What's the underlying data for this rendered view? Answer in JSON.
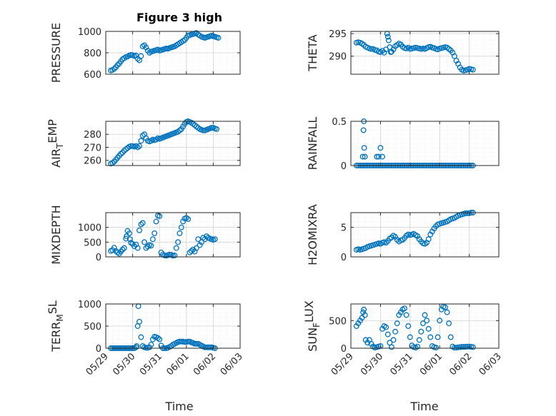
{
  "title": "Figure 3 high",
  "colors": {
    "marker": "#0072BD",
    "axis": "#262626",
    "grid": "#d0d0d0",
    "minor_grid": "#e6e6e6"
  },
  "xlabel": "Time",
  "chart_data": [
    {
      "type": "scatter",
      "ylabel": "PRESSURE",
      "title": "Figure 3 high",
      "xlim": [
        0,
        4
      ],
      "ylim": [
        600,
        1000
      ],
      "yticks": [
        600,
        800,
        1000
      ],
      "ytick_labels": [
        "600",
        "800",
        "1000"
      ],
      "x": [
        0.15,
        0.2,
        0.25,
        0.3,
        0.35,
        0.4,
        0.45,
        0.5,
        0.55,
        0.6,
        0.65,
        0.7,
        0.75,
        0.8,
        0.85,
        0.9,
        0.95,
        1.0,
        1.05,
        1.1,
        1.15,
        1.2,
        1.25,
        1.3,
        1.35,
        1.4,
        1.45,
        1.5,
        1.55,
        1.6,
        1.65,
        1.7,
        1.75,
        1.8,
        1.85,
        1.9,
        1.95,
        2.0,
        2.05,
        2.1,
        2.15,
        2.2,
        2.25,
        2.3,
        2.35,
        2.4,
        2.45,
        2.5,
        2.55,
        2.6,
        2.65,
        2.7,
        2.75,
        2.8,
        2.85,
        2.9,
        2.95,
        3.0,
        3.05,
        3.1,
        3.15,
        3.2,
        3.25,
        3.3,
        3.35
      ],
      "y": [
        635,
        640,
        650,
        665,
        685,
        700,
        720,
        740,
        750,
        760,
        765,
        775,
        780,
        778,
        770,
        775,
        745,
        730,
        770,
        860,
        870,
        850,
        820,
        800,
        810,
        815,
        820,
        825,
        830,
        820,
        825,
        830,
        835,
        840,
        838,
        845,
        850,
        855,
        860,
        870,
        880,
        890,
        900,
        910,
        920,
        940,
        960,
        965,
        970,
        975,
        980,
        985,
        970,
        960,
        950,
        945,
        940,
        945,
        950,
        955,
        960,
        955,
        950,
        945,
        940
      ]
    },
    {
      "type": "scatter",
      "ylabel": "THETA",
      "xlim": [
        0,
        4
      ],
      "ylim": [
        286,
        295.5
      ],
      "yticks": [
        290,
        295
      ],
      "ytick_labels": [
        "290",
        "295"
      ],
      "x": [
        0.15,
        0.2,
        0.25,
        0.3,
        0.35,
        0.4,
        0.45,
        0.5,
        0.55,
        0.6,
        0.65,
        0.7,
        0.75,
        0.8,
        0.85,
        0.9,
        0.95,
        0.98,
        1.0,
        1.02,
        1.05,
        1.08,
        1.1,
        1.15,
        1.2,
        1.25,
        1.3,
        1.35,
        1.4,
        1.45,
        1.5,
        1.55,
        1.6,
        1.65,
        1.7,
        1.75,
        1.8,
        1.85,
        1.9,
        1.95,
        2.0,
        2.05,
        2.1,
        2.15,
        2.2,
        2.25,
        2.3,
        2.35,
        2.4,
        2.45,
        2.5,
        2.55,
        2.6,
        2.65,
        2.7,
        2.75,
        2.8,
        2.85,
        2.9,
        2.95,
        3.0,
        3.05,
        3.1,
        3.15,
        3.2,
        3.25,
        3.3
      ],
      "y": [
        293.0,
        293.1,
        293.0,
        292.8,
        292.5,
        292.1,
        291.9,
        291.7,
        291.6,
        291.6,
        291.4,
        291.3,
        291.0,
        290.9,
        291.2,
        290.8,
        291.5,
        295.0,
        294.3,
        293.5,
        292.0,
        290.9,
        291.0,
        291.5,
        292.2,
        292.5,
        292.8,
        292.6,
        292.1,
        291.8,
        291.7,
        291.9,
        291.6,
        291.7,
        291.8,
        291.9,
        291.8,
        291.7,
        291.6,
        291.7,
        291.6,
        291.8,
        292.0,
        292.1,
        291.9,
        291.8,
        291.6,
        291.5,
        291.7,
        291.8,
        291.9,
        292.0,
        291.9,
        291.6,
        291.3,
        290.8,
        290.0,
        289.0,
        288.3,
        287.5,
        287.0,
        286.8,
        286.9,
        287.0,
        287.2,
        287.1,
        287.0
      ]
    },
    {
      "type": "scatter",
      "ylabel": "AIR_T_EMP",
      "ylabel_parts": [
        "AIR",
        "T",
        "EMP"
      ],
      "xlim": [
        0,
        4
      ],
      "ylim": [
        256,
        290
      ],
      "yticks": [
        260,
        270,
        280
      ],
      "ytick_labels": [
        "260",
        "270",
        "280"
      ],
      "x": [
        0.15,
        0.2,
        0.25,
        0.3,
        0.35,
        0.4,
        0.45,
        0.5,
        0.55,
        0.6,
        0.65,
        0.7,
        0.75,
        0.8,
        0.85,
        0.9,
        0.95,
        1.0,
        1.05,
        1.1,
        1.15,
        1.2,
        1.25,
        1.3,
        1.35,
        1.4,
        1.45,
        1.5,
        1.55,
        1.6,
        1.65,
        1.7,
        1.75,
        1.8,
        1.85,
        1.9,
        1.95,
        2.0,
        2.05,
        2.1,
        2.15,
        2.2,
        2.25,
        2.3,
        2.35,
        2.4,
        2.45,
        2.5,
        2.55,
        2.6,
        2.65,
        2.7,
        2.75,
        2.8,
        2.85,
        2.9,
        2.95,
        3.0,
        3.05,
        3.1,
        3.15,
        3.2,
        3.25,
        3.3
      ],
      "y": [
        257.5,
        258,
        259,
        260.5,
        262,
        263.5,
        265,
        266,
        267.5,
        268.5,
        269.5,
        270.5,
        271,
        271,
        270.5,
        271,
        270,
        271,
        275,
        279,
        280,
        277,
        275,
        274.5,
        275,
        276,
        275.5,
        276,
        277,
        276.5,
        277,
        277.5,
        278,
        278.5,
        279,
        279.5,
        280,
        280.5,
        281,
        281.5,
        282,
        283,
        284,
        286,
        288,
        289.5,
        290,
        289.5,
        289,
        288,
        287,
        286,
        285,
        284,
        283.5,
        283,
        283,
        283.5,
        284,
        284.5,
        285,
        285,
        284.5,
        284
      ]
    },
    {
      "type": "scatter",
      "ylabel": "RAINFALL",
      "xlim": [
        0,
        4
      ],
      "ylim": [
        0,
        0.5
      ],
      "yticks": [
        0,
        0.5
      ],
      "ytick_labels": [
        "0",
        "0.5"
      ],
      "x": [
        0.15,
        0.2,
        0.25,
        0.3,
        0.35,
        0.4,
        0.45,
        0.5,
        0.55,
        0.6,
        0.65,
        0.7,
        0.75,
        0.8,
        0.85,
        0.9,
        0.95,
        1.0,
        1.05,
        1.1,
        1.15,
        1.2,
        1.25,
        1.3,
        1.35,
        1.4,
        1.45,
        1.5,
        1.55,
        1.6,
        1.65,
        1.7,
        1.75,
        1.8,
        1.85,
        1.9,
        1.95,
        2.0,
        2.05,
        2.1,
        2.15,
        2.2,
        2.25,
        2.3,
        2.35,
        2.4,
        2.45,
        2.5,
        2.55,
        2.6,
        2.65,
        2.7,
        2.75,
        2.8,
        2.85,
        2.9,
        2.95,
        3.0,
        3.05,
        3.1,
        3.15,
        3.2,
        3.25,
        3.3,
        0.32,
        0.34,
        0.35,
        0.36,
        0.38,
        0.7,
        0.75,
        0.8,
        0.85
      ],
      "y": [
        0,
        0,
        0,
        0,
        0,
        0,
        0,
        0,
        0,
        0,
        0,
        0,
        0,
        0,
        0,
        0,
        0,
        0,
        0,
        0,
        0,
        0,
        0,
        0,
        0,
        0,
        0,
        0,
        0,
        0,
        0,
        0,
        0,
        0,
        0,
        0,
        0,
        0,
        0,
        0,
        0,
        0,
        0,
        0,
        0,
        0,
        0,
        0,
        0,
        0,
        0,
        0,
        0,
        0,
        0,
        0,
        0,
        0,
        0,
        0,
        0,
        0,
        0,
        0,
        0.1,
        0.4,
        0.5,
        0.2,
        0.1,
        0.1,
        0.1,
        0.2,
        0.1
      ]
    },
    {
      "type": "scatter",
      "ylabel": "MIXDEPTH",
      "xlim": [
        0,
        4
      ],
      "ylim": [
        0,
        1500
      ],
      "yticks": [
        0,
        500,
        1000
      ],
      "ytick_labels": [
        "0",
        "500",
        "1000"
      ],
      "x": [
        0.15,
        0.2,
        0.25,
        0.3,
        0.35,
        0.4,
        0.45,
        0.5,
        0.55,
        0.6,
        0.62,
        0.65,
        0.7,
        0.72,
        0.75,
        0.8,
        0.85,
        0.9,
        0.95,
        1.0,
        1.05,
        1.1,
        1.15,
        1.2,
        1.25,
        1.3,
        1.35,
        1.4,
        1.45,
        1.5,
        1.55,
        1.6,
        1.65,
        1.7,
        1.75,
        1.8,
        1.85,
        1.9,
        1.95,
        2.0,
        2.05,
        2.1,
        2.15,
        2.2,
        2.25,
        2.3,
        2.35,
        2.4,
        2.45,
        2.5,
        2.55,
        2.6,
        2.65,
        2.7,
        2.75,
        2.8,
        2.85,
        2.9,
        2.95,
        3.0,
        3.05,
        3.1,
        3.15,
        3.2,
        3.25
      ],
      "y": [
        200,
        230,
        310,
        200,
        150,
        110,
        180,
        250,
        300,
        620,
        700,
        880,
        800,
        600,
        480,
        440,
        360,
        420,
        300,
        900,
        1100,
        1150,
        500,
        300,
        350,
        400,
        380,
        600,
        800,
        1200,
        1400,
        1380,
        150,
        80,
        50,
        40,
        60,
        80,
        70,
        40,
        50,
        300,
        500,
        800,
        1000,
        1200,
        1300,
        1320,
        1280,
        150,
        200,
        250,
        180,
        300,
        600,
        400,
        500,
        650,
        600,
        700,
        650,
        620,
        600,
        580,
        600
      ]
    },
    {
      "type": "scatter",
      "ylabel": "H2OMIXRA",
      "xlim": [
        0,
        4
      ],
      "ylim": [
        0,
        7.5
      ],
      "yticks": [
        0,
        5
      ],
      "ytick_labels": [
        "0",
        "5"
      ],
      "x": [
        0.15,
        0.2,
        0.25,
        0.3,
        0.35,
        0.4,
        0.45,
        0.5,
        0.55,
        0.6,
        0.65,
        0.7,
        0.75,
        0.8,
        0.85,
        0.9,
        0.95,
        1.0,
        1.05,
        1.1,
        1.15,
        1.2,
        1.25,
        1.3,
        1.35,
        1.4,
        1.45,
        1.5,
        1.55,
        1.6,
        1.65,
        1.7,
        1.75,
        1.8,
        1.85,
        1.9,
        1.95,
        2.0,
        2.05,
        2.1,
        2.15,
        2.2,
        2.25,
        2.3,
        2.35,
        2.4,
        2.45,
        2.5,
        2.55,
        2.6,
        2.65,
        2.7,
        2.75,
        2.8,
        2.85,
        2.9,
        2.95,
        3.0,
        3.05,
        3.1,
        3.15,
        3.2,
        3.25,
        3.3
      ],
      "y": [
        1.2,
        1.3,
        1.2,
        1.3,
        1.4,
        1.5,
        1.7,
        1.8,
        1.9,
        2.0,
        2.1,
        2.2,
        2.3,
        2.2,
        2.4,
        2.5,
        2.4,
        2.7,
        3.1,
        3.3,
        3.6,
        3.4,
        2.9,
        2.6,
        2.8,
        2.9,
        3.2,
        3.6,
        3.8,
        3.7,
        3.8,
        3.9,
        3.7,
        3.5,
        3.0,
        2.6,
        2.3,
        2.2,
        2.4,
        3.0,
        3.8,
        4.3,
        4.8,
        5.2,
        5.5,
        5.6,
        5.7,
        5.8,
        5.9,
        6.0,
        6.2,
        6.4,
        6.5,
        6.6,
        6.8,
        7.0,
        7.1,
        7.2,
        7.3,
        7.4,
        7.4,
        7.4,
        7.5,
        7.5
      ]
    },
    {
      "type": "scatter",
      "ylabel": "TERR_M_SL",
      "ylabel_parts": [
        "TERR",
        "M",
        "SL"
      ],
      "xlim": [
        0,
        4
      ],
      "ylim": [
        0,
        1000
      ],
      "yticks": [
        0,
        500,
        1000
      ],
      "ytick_labels": [
        "0",
        "500",
        "1000"
      ],
      "x": [
        0.15,
        0.2,
        0.25,
        0.3,
        0.35,
        0.4,
        0.45,
        0.5,
        0.55,
        0.6,
        0.65,
        0.7,
        0.75,
        0.8,
        0.85,
        0.9,
        0.92,
        0.95,
        0.97,
        1.0,
        1.05,
        1.1,
        1.15,
        1.2,
        1.25,
        1.3,
        1.35,
        1.4,
        1.45,
        1.5,
        1.55,
        1.6,
        1.65,
        1.7,
        1.75,
        1.8,
        1.85,
        1.9,
        1.95,
        2.0,
        2.05,
        2.1,
        2.15,
        2.2,
        2.25,
        2.3,
        2.35,
        2.4,
        2.45,
        2.5,
        2.55,
        2.6,
        2.65,
        2.7,
        2.75,
        2.8,
        2.85,
        2.9,
        2.95,
        3.0,
        3.05,
        3.1,
        3.15,
        3.2,
        3.25
      ],
      "y": [
        0,
        0,
        0,
        0,
        0,
        0,
        0,
        0,
        0,
        0,
        0,
        0,
        0,
        0,
        0,
        20,
        50,
        500,
        950,
        600,
        250,
        50,
        20,
        10,
        10,
        20,
        80,
        200,
        260,
        250,
        230,
        200,
        60,
        0,
        0,
        0,
        10,
        30,
        50,
        80,
        100,
        120,
        140,
        150,
        150,
        150,
        140,
        140,
        150,
        150,
        130,
        120,
        100,
        100,
        100,
        80,
        60,
        40,
        20,
        20,
        20,
        20,
        20,
        10,
        0
      ]
    },
    {
      "type": "scatter",
      "ylabel": "SUN_F_LUX",
      "ylabel_parts": [
        "SUN",
        "F",
        "LUX"
      ],
      "xlim": [
        0,
        4
      ],
      "ylim": [
        0,
        800
      ],
      "yticks": [
        0,
        500
      ],
      "ytick_labels": [
        "0",
        "500"
      ],
      "xticks": [
        0,
        0.8,
        1.6,
        2.4,
        3.2,
        4.0
      ],
      "xtick_labels": [
        "05/29",
        "05/30",
        "05/31",
        "06/01",
        "06/02",
        "06/03"
      ],
      "x": [
        0.15,
        0.2,
        0.25,
        0.3,
        0.33,
        0.35,
        0.38,
        0.4,
        0.45,
        0.5,
        0.55,
        0.6,
        0.65,
        0.7,
        0.75,
        0.8,
        0.85,
        0.9,
        0.95,
        1.0,
        1.05,
        1.1,
        1.15,
        1.2,
        1.25,
        1.3,
        1.35,
        1.4,
        1.45,
        1.5,
        1.55,
        1.6,
        1.65,
        1.7,
        1.75,
        1.8,
        1.85,
        1.9,
        1.95,
        2.0,
        2.05,
        2.1,
        2.15,
        2.2,
        2.25,
        2.3,
        2.35,
        2.4,
        2.45,
        2.5,
        2.55,
        2.6,
        2.65,
        2.7,
        2.75,
        2.8,
        2.85,
        2.9,
        2.95,
        3.0,
        3.05,
        3.1,
        3.15,
        3.2,
        3.25,
        3.3
      ],
      "y": [
        400,
        450,
        500,
        550,
        650,
        700,
        600,
        150,
        100,
        150,
        80,
        30,
        10,
        20,
        30,
        40,
        350,
        400,
        380,
        250,
        100,
        20,
        150,
        300,
        450,
        600,
        650,
        700,
        720,
        600,
        400,
        200,
        50,
        20,
        10,
        30,
        150,
        300,
        450,
        600,
        500,
        350,
        200,
        40,
        20,
        10,
        200,
        500,
        700,
        750,
        740,
        650,
        450,
        200,
        30,
        10,
        10,
        15,
        20,
        25,
        25,
        25,
        30,
        30,
        25,
        20
      ]
    }
  ]
}
